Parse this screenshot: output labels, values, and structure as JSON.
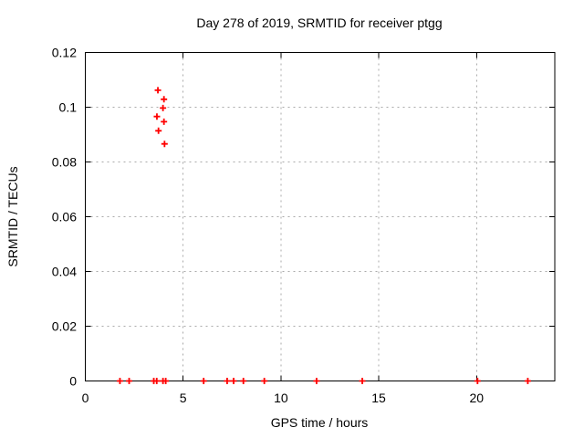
{
  "window": {
    "background_color": "#ffffff"
  },
  "chart_data": {
    "type": "scatter",
    "title": "Day 278 of 2019, SRMTID for receiver ptgg",
    "xlabel": "GPS time / hours",
    "ylabel": "SRMTID / TECUs",
    "xlim": [
      0,
      24
    ],
    "ylim": [
      0,
      0.12
    ],
    "xticks": [
      0,
      5,
      10,
      15,
      20
    ],
    "xtick_labels": [
      "0",
      "5",
      "10",
      "15",
      "20"
    ],
    "yticks": [
      0,
      0.02,
      0.04,
      0.06,
      0.08,
      0.1,
      0.12
    ],
    "ytick_labels": [
      "0",
      "0.02",
      "0.04",
      "0.06",
      "0.08",
      "0.1",
      "0.12"
    ],
    "grid": true,
    "grid_style": "dashed",
    "legend": false,
    "marker": "plus",
    "marker_color": "#ff0000",
    "grid_color": "#aaaaaa",
    "axis_color": "#000000",
    "series": [
      {
        "name": "SRMTID",
        "points": [
          [
            1.77,
            0
          ],
          [
            2.24,
            0
          ],
          [
            3.5,
            0
          ],
          [
            3.65,
            0
          ],
          [
            3.97,
            0
          ],
          [
            4.11,
            0
          ],
          [
            6.05,
            0
          ],
          [
            7.25,
            0
          ],
          [
            7.58,
            0
          ],
          [
            8.08,
            0
          ],
          [
            9.15,
            0
          ],
          [
            11.82,
            0
          ],
          [
            14.16,
            0
          ],
          [
            20.05,
            0
          ],
          [
            22.62,
            0
          ],
          [
            3.71,
            0.1062
          ],
          [
            4.02,
            0.1029
          ],
          [
            3.97,
            0.0997
          ],
          [
            3.66,
            0.0966
          ],
          [
            4.02,
            0.0947
          ],
          [
            3.74,
            0.0914
          ],
          [
            4.05,
            0.0866
          ]
        ]
      }
    ]
  }
}
